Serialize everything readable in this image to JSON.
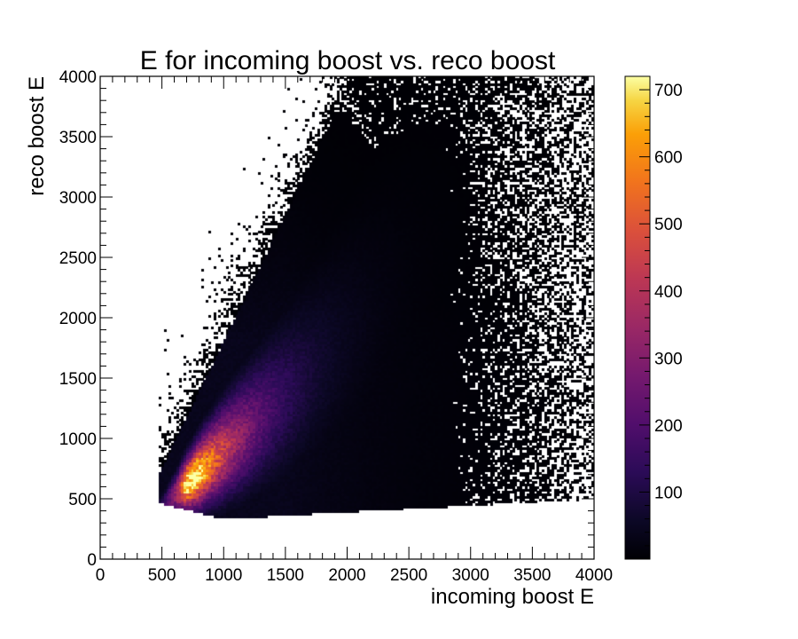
{
  "chart_data": {
    "type": "heatmap",
    "title": "E for incoming boost vs. reco boost",
    "xlabel": "incoming boost E",
    "ylabel": "reco boost E",
    "xlim": [
      0,
      4000
    ],
    "ylim": [
      0,
      4000
    ],
    "x_ticks": [
      0,
      500,
      1000,
      1500,
      2000,
      2500,
      3000,
      3500,
      4000
    ],
    "y_ticks": [
      0,
      500,
      1000,
      1500,
      2000,
      2500,
      3000,
      3500,
      4000
    ],
    "x_tick_labels": [
      "0",
      "500",
      "1000",
      "1500",
      "2000",
      "2500",
      "3000",
      "3500",
      "4000"
    ],
    "y_tick_labels": [
      "0",
      "500",
      "1000",
      "1500",
      "2000",
      "2500",
      "3000",
      "3500",
      "4000"
    ],
    "colorbar": {
      "min": 0,
      "max": 720,
      "ticks": [
        100,
        200,
        300,
        400,
        500,
        600,
        700
      ],
      "tick_labels": [
        "100",
        "200",
        "300",
        "400",
        "500",
        "600",
        "700"
      ],
      "colormap": "inferno"
    },
    "bins": {
      "x_bin_width": 20,
      "y_bin_width": 20
    },
    "distribution": {
      "description_points": [
        {
          "x": 850,
          "y": 750,
          "count": 700
        },
        {
          "x": 700,
          "y": 600,
          "count": 550
        },
        {
          "x": 1100,
          "y": 1000,
          "count": 350
        },
        {
          "x": 1400,
          "y": 1300,
          "count": 180
        },
        {
          "x": 1800,
          "y": 1700,
          "count": 80
        },
        {
          "x": 2200,
          "y": 2000,
          "count": 30
        },
        {
          "x": 2800,
          "y": 2400,
          "count": 10
        },
        {
          "x": 3500,
          "y": 3000,
          "count": 2
        }
      ]
    },
    "grid": false,
    "colors": {
      "frame": "#000000",
      "background": "#ffffff",
      "empty_bin": "#ffffff"
    }
  }
}
